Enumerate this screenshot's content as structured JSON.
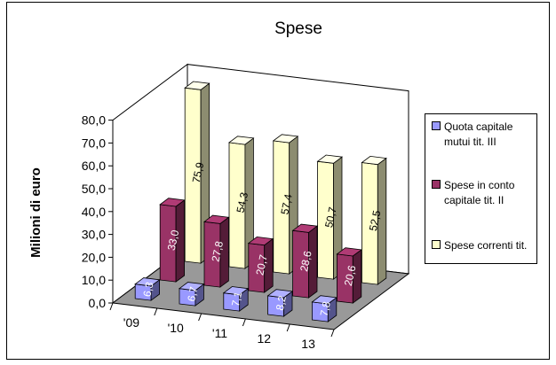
{
  "chart_data": {
    "type": "bar",
    "title": "Spese",
    "ylabel": "Milioni di euro",
    "xlabel": "",
    "categories": [
      "'09",
      "'10",
      "'11",
      "12",
      "13"
    ],
    "ylim": [
      0,
      80
    ],
    "yticks": [
      "0,0",
      "10,0",
      "20,0",
      "30,0",
      "40,0",
      "50,0",
      "60,0",
      "70,0",
      "80,0"
    ],
    "series": [
      {
        "name": "Quota capitale mutui tit. III",
        "values": [
          6.3,
          6.7,
          7.1,
          8.2,
          7.8
        ],
        "labels": [
          "6,3",
          "6,7",
          "7,1",
          "8,2",
          "7,8"
        ],
        "color": "#9999ff"
      },
      {
        "name": "Spese in conto capitale tit. II",
        "values": [
          33.0,
          27.8,
          20.7,
          28.6,
          20.6
        ],
        "labels": [
          "33,0",
          "27,8",
          "20,7",
          "28,6",
          "20,6"
        ],
        "color": "#993366"
      },
      {
        "name": "Spese correnti tit.",
        "values": [
          75.9,
          54.3,
          57.4,
          50.7,
          52.5
        ],
        "labels": [
          "75,9",
          "54,3",
          "57,4",
          "50,7",
          "52,5"
        ],
        "color": "#ffffcc"
      }
    ],
    "legend_lines": [
      [
        "Quota capitale",
        "mutui tit. III"
      ],
      [
        "Spese in conto",
        "capitale tit. II"
      ],
      [
        "Spese correnti tit."
      ]
    ],
    "legend_position": "right",
    "grid": false,
    "projection": "3d-perspective"
  }
}
